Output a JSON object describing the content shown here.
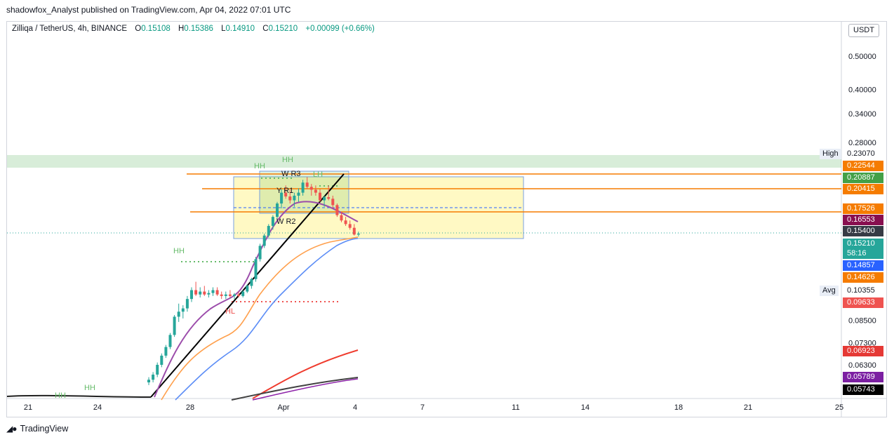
{
  "publisher": "shadowfox_Analyst published on TradingView.com, Apr 04, 2022 07:01 UTC",
  "legend": {
    "symbol": "Zilliqa / TetherUS, 4h, BINANCE",
    "o_label": "O",
    "o": "0.15108",
    "h_label": "H",
    "h": "0.15386",
    "l_label": "L",
    "l": "0.14910",
    "c_label": "C",
    "c": "0.15210",
    "change": "+0.00099 (+0.66%)"
  },
  "currency_button": "USDT",
  "branding": "TradingView",
  "chart_data": {
    "type": "candlestick",
    "symbol": "ZIL/USDT",
    "interval": "4h",
    "scale": "log",
    "x_ticks": [
      "21",
      "24",
      "28",
      "Apr",
      "4",
      "7",
      "11",
      "14",
      "18",
      "21",
      "25"
    ],
    "y_ticks": [
      "0.50000",
      "0.40000",
      "0.34000",
      "0.28000",
      "0.08500",
      "0.07300",
      "0.06300"
    ],
    "price_tags": [
      {
        "id": "high",
        "side_label": "High",
        "value": "0.23070",
        "bg": "",
        "fg": "#131722"
      },
      {
        "id": "t1",
        "value": "0.22544",
        "bg": "#f57c00",
        "fg": "#ffffff"
      },
      {
        "id": "t2",
        "value": "0.20887",
        "bg": "#43a047",
        "fg": "#ffffff"
      },
      {
        "id": "t3",
        "value": "0.20415",
        "bg": "#f57c00",
        "fg": "#ffffff"
      },
      {
        "id": "t4",
        "value": "0.17526",
        "bg": "#f57c00",
        "fg": "#ffffff"
      },
      {
        "id": "t5",
        "value": "0.16553",
        "bg": "#880e4f",
        "fg": "#ffffff"
      },
      {
        "id": "t6",
        "value": "0.15400",
        "bg": "#363a45",
        "fg": "#ffffff"
      },
      {
        "id": "t7",
        "value": "0.15210",
        "bg": "#26a69a",
        "fg": "#ffffff"
      },
      {
        "id": "t7b",
        "value": "58:16",
        "bg": "#26a69a",
        "fg": "#ffffff"
      },
      {
        "id": "t8",
        "value": "0.14857",
        "bg": "#2962ff",
        "fg": "#ffffff"
      },
      {
        "id": "t9",
        "value": "0.14626",
        "bg": "#f57c00",
        "fg": "#ffffff"
      },
      {
        "id": "avg",
        "side_label": "Avg",
        "value": "0.10355",
        "bg": "",
        "fg": "#131722"
      },
      {
        "id": "t10",
        "value": "0.09633",
        "bg": "#ef5350",
        "fg": "#ffffff"
      },
      {
        "id": "t11",
        "value": "0.06923",
        "bg": "#e53935",
        "fg": "#ffffff"
      },
      {
        "id": "t12",
        "value": "0.05789",
        "bg": "#7b1fa2",
        "fg": "#ffffff"
      },
      {
        "id": "t13",
        "value": "0.05743",
        "bg": "#000000",
        "fg": "#ffffff"
      }
    ],
    "annotations": [
      "HH",
      "HH",
      "HH",
      "HH",
      "HH",
      "LH",
      "W R3",
      "Y R1",
      "W R2",
      "HL"
    ],
    "candles": [
      [
        0.056,
        0.058,
        0.055,
        0.057
      ],
      [
        0.057,
        0.06,
        0.056,
        0.059
      ],
      [
        0.059,
        0.064,
        0.058,
        0.063
      ],
      [
        0.063,
        0.068,
        0.062,
        0.067
      ],
      [
        0.067,
        0.072,
        0.066,
        0.071
      ],
      [
        0.071,
        0.078,
        0.07,
        0.077
      ],
      [
        0.077,
        0.088,
        0.076,
        0.087
      ],
      [
        0.087,
        0.095,
        0.084,
        0.09
      ],
      [
        0.09,
        0.094,
        0.086,
        0.092
      ],
      [
        0.092,
        0.1,
        0.09,
        0.098
      ],
      [
        0.098,
        0.106,
        0.096,
        0.104
      ],
      [
        0.104,
        0.11,
        0.1,
        0.101
      ],
      [
        0.101,
        0.106,
        0.099,
        0.103
      ],
      [
        0.103,
        0.107,
        0.1,
        0.101
      ],
      [
        0.101,
        0.104,
        0.099,
        0.102
      ],
      [
        0.102,
        0.106,
        0.1,
        0.104
      ],
      [
        0.104,
        0.106,
        0.1,
        0.101
      ],
      [
        0.101,
        0.103,
        0.098,
        0.1
      ],
      [
        0.1,
        0.103,
        0.098,
        0.101
      ],
      [
        0.101,
        0.104,
        0.099,
        0.1
      ],
      [
        0.1,
        0.102,
        0.098,
        0.101
      ],
      [
        0.101,
        0.103,
        0.099,
        0.1
      ],
      [
        0.1,
        0.104,
        0.099,
        0.103
      ],
      [
        0.103,
        0.108,
        0.102,
        0.107
      ],
      [
        0.107,
        0.113,
        0.105,
        0.112
      ],
      [
        0.112,
        0.13,
        0.11,
        0.128
      ],
      [
        0.128,
        0.142,
        0.126,
        0.14
      ],
      [
        0.14,
        0.152,
        0.138,
        0.15
      ],
      [
        0.15,
        0.162,
        0.148,
        0.16
      ],
      [
        0.16,
        0.172,
        0.156,
        0.17
      ],
      [
        0.17,
        0.188,
        0.168,
        0.186
      ],
      [
        0.186,
        0.205,
        0.18,
        0.2
      ],
      [
        0.2,
        0.21,
        0.192,
        0.195
      ],
      [
        0.195,
        0.204,
        0.186,
        0.19
      ],
      [
        0.19,
        0.2,
        0.182,
        0.196
      ],
      [
        0.196,
        0.206,
        0.188,
        0.2
      ],
      [
        0.2,
        0.218,
        0.196,
        0.214
      ],
      [
        0.214,
        0.222,
        0.205,
        0.208
      ],
      [
        0.208,
        0.212,
        0.196,
        0.204
      ],
      [
        0.204,
        0.21,
        0.196,
        0.2
      ],
      [
        0.2,
        0.205,
        0.188,
        0.19
      ],
      [
        0.19,
        0.196,
        0.182,
        0.194
      ],
      [
        0.194,
        0.21,
        0.19,
        0.192
      ],
      [
        0.192,
        0.196,
        0.18,
        0.184
      ],
      [
        0.184,
        0.186,
        0.17,
        0.172
      ],
      [
        0.172,
        0.176,
        0.164,
        0.166
      ],
      [
        0.166,
        0.17,
        0.16,
        0.162
      ],
      [
        0.162,
        0.166,
        0.156,
        0.158
      ],
      [
        0.158,
        0.162,
        0.15,
        0.151
      ],
      [
        0.151,
        0.154,
        0.149,
        0.152
      ]
    ]
  }
}
